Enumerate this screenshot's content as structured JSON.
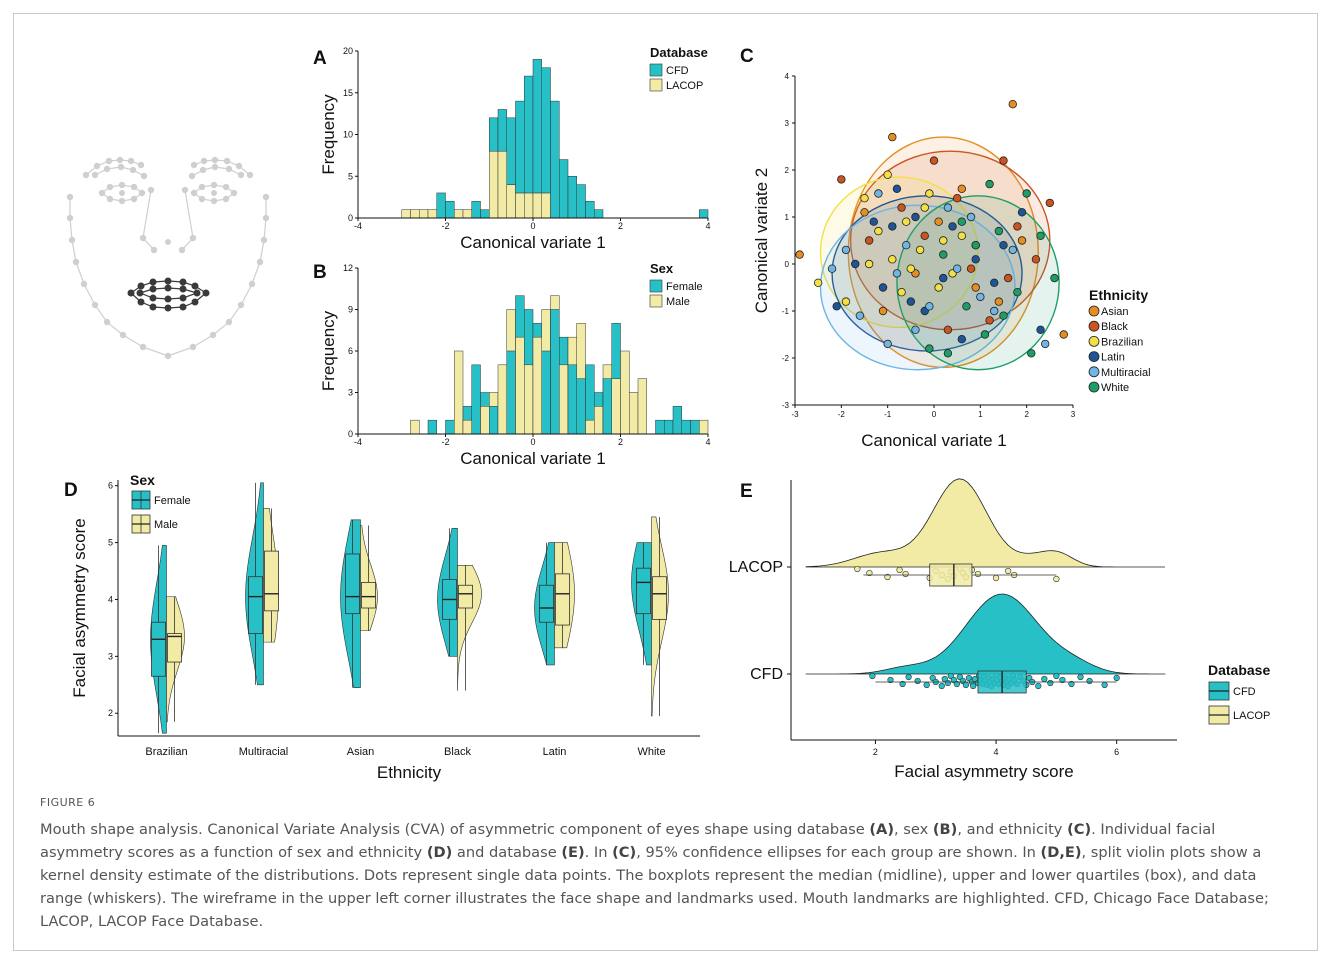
{
  "figure": {
    "label": "FIGURE 6",
    "caption_parts": [
      {
        "t": "Mouth shape analysis. Canonical Variate Analysis (CVA) of asymmetric component of eyes shape using database "
      },
      {
        "b": "(A)"
      },
      {
        "t": ", sex "
      },
      {
        "b": "(B)"
      },
      {
        "t": ", and ethnicity "
      },
      {
        "b": "(C)"
      },
      {
        "t": ". Individual facial asymmetry scores as a function of sex and ethnicity "
      },
      {
        "b": "(D)"
      },
      {
        "t": " and database "
      },
      {
        "b": "(E)"
      },
      {
        "t": ". In "
      },
      {
        "b": "(C)"
      },
      {
        "t": ", 95% confidence ellipses for each group are shown. In "
      },
      {
        "b": "(D,E)"
      },
      {
        "t": ", split violin plots show a kernel density estimate of the distributions. Dots represent single data points. The boxplots represent the median (midline), upper and lower quartiles (box), and data range (whiskers). The wireframe in the upper left corner illustrates the face shape and landmarks used. Mouth landmarks are highlighted. CFD, Chicago Face Database; LACOP, LACOP Face Database."
      }
    ]
  },
  "colors": {
    "teal": "#27c0c6",
    "cream": "#f1eba6",
    "axis": "#111111",
    "wire": "#cfcfcf",
    "mouth": "#3a3a3a"
  },
  "chart_data": [
    {
      "panel": "A",
      "type": "bar",
      "stacked": true,
      "xlabel": "Canonical variate 1",
      "ylabel": "Frequency",
      "xlim": [
        -4,
        4
      ],
      "ylim": [
        0,
        20
      ],
      "xticks": [
        "-4",
        "-2",
        "0",
        "2",
        "4"
      ],
      "yticks": [
        "0",
        "5",
        "10",
        "15",
        "20"
      ],
      "bin_start": -3.0,
      "bin_width": 0.2,
      "legend_title": "Database",
      "legend_position": "top-right",
      "series": [
        {
          "name": "CFD",
          "color": "#27c0c6",
          "values": [
            0,
            0,
            0,
            0,
            3,
            2,
            0,
            0,
            2,
            1,
            4,
            5,
            8,
            11,
            14,
            16,
            15,
            14,
            7,
            5,
            4,
            2,
            1,
            0,
            0,
            0,
            0,
            0,
            0,
            0,
            0,
            0,
            0,
            0,
            1
          ]
        },
        {
          "name": "LACOP",
          "color": "#f1eba6",
          "values": [
            1,
            1,
            1,
            1,
            0,
            0,
            1,
            1,
            0,
            0,
            8,
            8,
            4,
            3,
            3,
            3,
            3,
            0,
            0,
            0,
            0,
            0,
            0,
            0,
            0,
            0,
            0,
            0,
            0,
            0,
            0,
            0,
            0,
            0,
            0
          ]
        }
      ]
    },
    {
      "panel": "B",
      "type": "bar",
      "stacked": false,
      "overlay": true,
      "xlabel": "Canonical variate 1",
      "ylabel": "Frequency",
      "xlim": [
        -4,
        4
      ],
      "ylim": [
        0,
        12
      ],
      "xticks": [
        "-4",
        "-2",
        "0",
        "2",
        "4"
      ],
      "yticks": [
        "0",
        "3",
        "6",
        "9",
        "12"
      ],
      "bin_start": -3.0,
      "bin_width": 0.2,
      "legend_title": "Sex",
      "legend_position": "top-right",
      "series": [
        {
          "name": "Female",
          "color": "#27c0c6",
          "values": [
            0,
            0,
            0,
            1,
            0,
            1,
            0,
            2,
            5,
            3,
            2,
            5,
            6,
            10,
            9,
            8,
            6,
            9,
            7,
            5,
            4,
            5,
            3,
            4,
            8,
            6,
            0,
            0,
            0,
            1,
            1,
            2,
            1,
            1,
            0
          ]
        },
        {
          "name": "Male",
          "color": "#f1eba6",
          "values": [
            0,
            1,
            0,
            0,
            0,
            0,
            6,
            1,
            0,
            2,
            3,
            5,
            9,
            7,
            5,
            7,
            9,
            10,
            5,
            7,
            8,
            1,
            2,
            5,
            4,
            6,
            3,
            4,
            0,
            0,
            0,
            0,
            0,
            0,
            1
          ]
        }
      ]
    },
    {
      "panel": "C",
      "type": "scatter",
      "xlabel": "Canonical variate 1",
      "ylabel": "Canonical variate 2",
      "xlim": [
        -3,
        3
      ],
      "ylim": [
        -3,
        4
      ],
      "xticks": [
        "-3",
        "-2",
        "-1",
        "0",
        "1",
        "2",
        "3"
      ],
      "yticks": [
        "-3",
        "-2",
        "-1",
        "0",
        "1",
        "2",
        "3",
        "4"
      ],
      "legend_title": "Ethnicity",
      "legend_position": "right",
      "series": [
        {
          "name": "Asian",
          "color": "#e58f23",
          "ellipse": {
            "cx": 0.2,
            "cy": 0.25,
            "rx": 2.05,
            "ry": 2.45
          },
          "points": [
            [
              1.7,
              3.4
            ],
            [
              -0.9,
              2.7
            ],
            [
              -2.9,
              0.2
            ],
            [
              2.8,
              -1.5
            ],
            [
              -1.5,
              1.1
            ],
            [
              0.6,
              1.6
            ],
            [
              1.4,
              -0.8
            ],
            [
              -0.4,
              -0.2
            ],
            [
              0.1,
              0.9
            ],
            [
              1.9,
              0.5
            ],
            [
              -1.1,
              -1.0
            ],
            [
              0.9,
              -0.5
            ]
          ]
        },
        {
          "name": "Black",
          "color": "#cc5420",
          "ellipse": {
            "cx": 0.35,
            "cy": 0.5,
            "rx": 2.15,
            "ry": 1.9
          },
          "points": [
            [
              -2.0,
              1.8
            ],
            [
              0.0,
              2.2
            ],
            [
              1.5,
              2.2
            ],
            [
              2.5,
              1.3
            ],
            [
              -1.4,
              0.5
            ],
            [
              0.5,
              1.4
            ],
            [
              1.8,
              0.8
            ],
            [
              0.8,
              -0.1
            ],
            [
              -0.2,
              0.6
            ],
            [
              1.2,
              -1.2
            ],
            [
              -0.7,
              1.2
            ],
            [
              0.3,
              -1.4
            ],
            [
              2.2,
              0.1
            ],
            [
              1.6,
              -0.3
            ]
          ]
        },
        {
          "name": "Brazilian",
          "color": "#f2e044",
          "ellipse": {
            "cx": -0.75,
            "cy": 0.25,
            "rx": 1.7,
            "ry": 1.6
          },
          "points": [
            [
              -2.5,
              -0.4
            ],
            [
              -1.5,
              1.4
            ],
            [
              -0.9,
              0.1
            ],
            [
              -0.5,
              -0.1
            ],
            [
              -0.2,
              1.2
            ],
            [
              -1.2,
              0.7
            ],
            [
              -0.7,
              -0.6
            ],
            [
              0.2,
              0.5
            ],
            [
              -1.9,
              -0.8
            ],
            [
              -0.3,
              0.3
            ],
            [
              0.4,
              -0.2
            ],
            [
              -1.0,
              1.9
            ],
            [
              -0.6,
              0.9
            ],
            [
              0.1,
              -0.5
            ],
            [
              0.9,
              0.4
            ],
            [
              0.6,
              0.6
            ],
            [
              -1.4,
              0.0
            ],
            [
              -0.1,
              1.5
            ]
          ]
        },
        {
          "name": "Latin",
          "color": "#1f5597",
          "ellipse": {
            "cx": -0.15,
            "cy": -0.2,
            "rx": 2.05,
            "ry": 1.65
          },
          "points": [
            [
              -2.1,
              -0.9
            ],
            [
              -1.7,
              0.0
            ],
            [
              -0.8,
              1.6
            ],
            [
              -0.4,
              1.0
            ],
            [
              0.4,
              0.8
            ],
            [
              0.9,
              0.1
            ],
            [
              1.3,
              -0.4
            ],
            [
              -0.2,
              -1.0
            ],
            [
              0.6,
              -1.6
            ],
            [
              -1.3,
              0.9
            ],
            [
              1.9,
              1.1
            ],
            [
              -0.5,
              -0.8
            ],
            [
              1.5,
              0.4
            ],
            [
              -0.9,
              0.8
            ],
            [
              0.2,
              -0.3
            ],
            [
              2.3,
              -1.4
            ],
            [
              -1.1,
              -0.5
            ]
          ]
        },
        {
          "name": "Multiracial",
          "color": "#6fb6e3",
          "ellipse": {
            "cx": -0.35,
            "cy": -0.5,
            "rx": 2.1,
            "ry": 1.75
          },
          "points": [
            [
              -1.9,
              0.3
            ],
            [
              -1.2,
              1.5
            ],
            [
              -0.6,
              0.4
            ],
            [
              -0.1,
              -0.9
            ],
            [
              0.5,
              -0.1
            ],
            [
              1.0,
              -0.7
            ],
            [
              -1.0,
              -1.7
            ],
            [
              -0.4,
              -1.4
            ],
            [
              0.8,
              1.0
            ],
            [
              1.7,
              0.3
            ],
            [
              2.4,
              -1.7
            ],
            [
              -2.2,
              -0.1
            ],
            [
              0.3,
              1.2
            ],
            [
              -0.8,
              -0.2
            ],
            [
              1.3,
              -1.0
            ],
            [
              -1.6,
              -1.1
            ]
          ]
        },
        {
          "name": "White",
          "color": "#1e9e67",
          "ellipse": {
            "cx": 0.95,
            "cy": -0.4,
            "rx": 1.75,
            "ry": 1.85
          },
          "points": [
            [
              1.2,
              1.7
            ],
            [
              2.0,
              1.5
            ],
            [
              1.4,
              0.7
            ],
            [
              0.9,
              0.4
            ],
            [
              2.6,
              -0.3
            ],
            [
              2.1,
              -1.9
            ],
            [
              1.5,
              -1.1
            ],
            [
              0.3,
              -1.9
            ],
            [
              -0.1,
              -1.8
            ],
            [
              0.6,
              0.9
            ],
            [
              1.8,
              -0.6
            ],
            [
              0.2,
              0.2
            ],
            [
              1.1,
              -1.5
            ],
            [
              2.3,
              0.6
            ],
            [
              0.7,
              -0.9
            ]
          ]
        }
      ]
    },
    {
      "panel": "D",
      "type": "split-violin",
      "xlabel": "Ethnicity",
      "ylabel": "Facial asymmetry score",
      "ylim": [
        1.6,
        6.1
      ],
      "yticks": [
        "2",
        "3",
        "4",
        "5",
        "6"
      ],
      "categories": [
        "Brazilian",
        "Multiracial",
        "Asian",
        "Black",
        "Latin",
        "White"
      ],
      "legend_title": "Sex",
      "legend_position": "top-left",
      "series": [
        {
          "name": "Female",
          "color": "#27c0c6",
          "box": [
            [
              1.65,
              2.65,
              3.3,
              3.6,
              4.95
            ],
            [
              2.5,
              3.4,
              4.05,
              4.4,
              6.05
            ],
            [
              2.45,
              3.75,
              4.05,
              4.8,
              5.4
            ],
            [
              3.0,
              3.65,
              4.0,
              4.35,
              5.25
            ],
            [
              2.85,
              3.6,
              3.85,
              4.25,
              5.0
            ],
            [
              2.85,
              3.75,
              4.3,
              4.55,
              5.0
            ]
          ],
          "width": [
            0.8,
            0.9,
            1.0,
            1.0,
            1.0,
            1.0
          ]
        },
        {
          "name": "Male",
          "color": "#f1eba6",
          "box": [
            [
              1.85,
              2.9,
              3.35,
              3.4,
              4.05
            ],
            [
              3.25,
              3.8,
              4.1,
              4.85,
              5.6
            ],
            [
              3.45,
              3.85,
              4.05,
              4.3,
              5.3
            ],
            [
              2.4,
              3.85,
              4.1,
              4.25,
              4.6
            ],
            [
              3.15,
              3.55,
              4.1,
              4.45,
              5.0
            ],
            [
              1.95,
              3.65,
              4.1,
              4.4,
              5.45
            ]
          ],
          "width": [
            0.9,
            0.75,
            0.85,
            1.2,
            1.0,
            0.85
          ]
        }
      ]
    },
    {
      "panel": "E",
      "type": "raincloud",
      "xlabel": "Facial asymmetry score",
      "ylabel": "",
      "xlim": [
        0.6,
        7.0
      ],
      "xticks": [
        "2",
        "4",
        "6"
      ],
      "categories": [
        "LACOP",
        "CFD"
      ],
      "legend_title": "Database",
      "legend_position": "right",
      "series": [
        {
          "name": "CFD",
          "color": "#27c0c6",
          "box": [
            2.0,
            3.7,
            4.1,
            4.5,
            6.0
          ],
          "points": [
            1.95,
            2.25,
            2.45,
            2.55,
            2.7,
            2.85,
            2.95,
            3.0,
            3.1,
            3.15,
            3.2,
            3.25,
            3.3,
            3.35,
            3.4,
            3.45,
            3.5,
            3.55,
            3.6,
            3.62,
            3.65,
            3.7,
            3.72,
            3.75,
            3.78,
            3.8,
            3.82,
            3.85,
            3.88,
            3.9,
            3.92,
            3.95,
            3.98,
            4.0,
            4.02,
            4.05,
            4.08,
            4.1,
            4.12,
            4.15,
            4.18,
            4.2,
            4.22,
            4.25,
            4.28,
            4.3,
            4.35,
            4.4,
            4.45,
            4.5,
            4.55,
            4.6,
            4.7,
            4.8,
            4.9,
            5.0,
            5.1,
            5.25,
            5.4,
            5.55,
            5.8,
            6.0
          ]
        },
        {
          "name": "LACOP",
          "color": "#f1eba6",
          "box": [
            1.8,
            2.9,
            3.3,
            3.6,
            5.0
          ],
          "points": [
            1.7,
            1.9,
            2.2,
            2.4,
            2.5,
            2.9,
            3.0,
            3.1,
            3.2,
            3.25,
            3.3,
            3.4,
            3.45,
            3.5,
            3.6,
            3.7,
            4.0,
            4.2,
            4.3,
            5.0
          ]
        }
      ]
    }
  ]
}
